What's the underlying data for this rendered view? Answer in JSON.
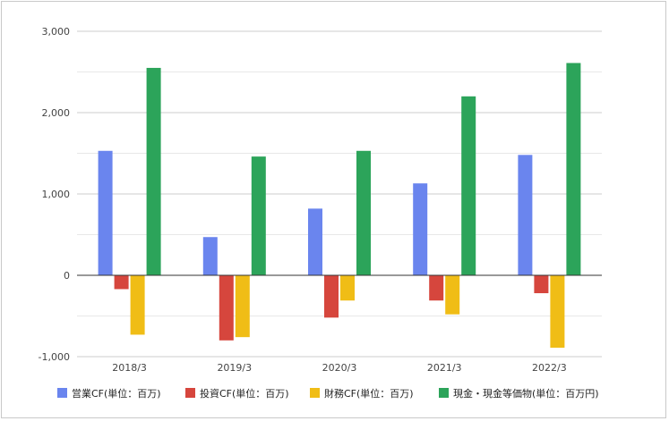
{
  "chart_data": {
    "type": "bar",
    "categories": [
      "2018/3",
      "2019/3",
      "2020/3",
      "2021/3",
      "2022/3"
    ],
    "series": [
      {
        "name": "営業CF(単位：百万)",
        "color": "#6a85ee",
        "values": [
          1530,
          470,
          820,
          1130,
          1480
        ]
      },
      {
        "name": "投資CF(単位：百万)",
        "color": "#d6463d",
        "values": [
          -170,
          -800,
          -520,
          -310,
          -220
        ]
      },
      {
        "name": "財務CF(単位：百万)",
        "color": "#f0bd16",
        "values": [
          -730,
          -760,
          -310,
          -480,
          -890
        ]
      },
      {
        "name": "現金・現金等価物(単位：百万円)",
        "color": "#2ca45a",
        "values": [
          2550,
          1460,
          1530,
          2200,
          2610
        ]
      }
    ],
    "y_ticks": [
      3000,
      2000,
      1000,
      0,
      -1000
    ],
    "y_tick_labels": [
      "3,000",
      "2,000",
      "1,000",
      "0",
      "-1,000"
    ],
    "ylim": [
      -1000,
      3000
    ],
    "grid": true,
    "legend_position": "bottom"
  }
}
